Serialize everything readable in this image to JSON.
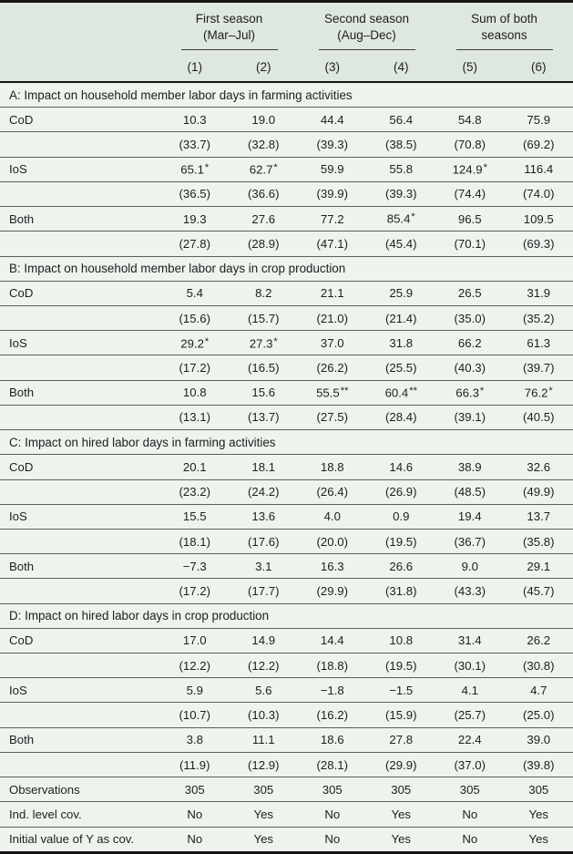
{
  "colors": {
    "body_background": "#eef3ee",
    "header_background": "#dee8de",
    "heavy_rule": "#141414",
    "thin_rule": "#5e5e5e"
  },
  "table": {
    "groups": [
      {
        "line1": "First season",
        "line2": "(Mar–Jul)"
      },
      {
        "line1": "Second season",
        "line2": "(Aug–Dec)"
      },
      {
        "line1": "Sum of both",
        "line2": "seasons"
      }
    ],
    "col_numbers": [
      "(1)",
      "(2)",
      "(3)",
      "(4)",
      "(5)",
      "(6)"
    ],
    "sections": [
      {
        "title": "A: Impact on household member labor days in farming activities",
        "rows": [
          {
            "label": "CoD",
            "values": [
              "10.3",
              "19.0",
              "44.4",
              "56.4",
              "54.8",
              "75.9"
            ]
          },
          {
            "label": "",
            "values": [
              "(33.7)",
              "(32.8)",
              "(39.3)",
              "(38.5)",
              "(70.8)",
              "(69.2)"
            ]
          },
          {
            "label": "IoS",
            "values": [
              "65.1*",
              "62.7*",
              "59.9",
              "55.8",
              "124.9*",
              "116.4"
            ]
          },
          {
            "label": "",
            "values": [
              "(36.5)",
              "(36.6)",
              "(39.9)",
              "(39.3)",
              "(74.4)",
              "(74.0)"
            ]
          },
          {
            "label": "Both",
            "values": [
              "19.3",
              "27.6",
              "77.2",
              "85.4*",
              "96.5",
              "109.5"
            ]
          },
          {
            "label": "",
            "values": [
              "(27.8)",
              "(28.9)",
              "(47.1)",
              "(45.4)",
              "(70.1)",
              "(69.3)"
            ]
          }
        ]
      },
      {
        "title": "B: Impact on household member labor days in crop production",
        "rows": [
          {
            "label": "CoD",
            "values": [
              "5.4",
              "8.2",
              "21.1",
              "25.9",
              "26.5",
              "31.9"
            ]
          },
          {
            "label": "",
            "values": [
              "(15.6)",
              "(15.7)",
              "(21.0)",
              "(21.4)",
              "(35.0)",
              "(35.2)"
            ]
          },
          {
            "label": "IoS",
            "values": [
              "29.2*",
              "27.3*",
              "37.0",
              "31.8",
              "66.2",
              "61.3"
            ]
          },
          {
            "label": "",
            "values": [
              "(17.2)",
              "(16.5)",
              "(26.2)",
              "(25.5)",
              "(40.3)",
              "(39.7)"
            ]
          },
          {
            "label": "Both",
            "values": [
              "10.8",
              "15.6",
              "55.5**",
              "60.4**",
              "66.3*",
              "76.2*"
            ]
          },
          {
            "label": "",
            "values": [
              "(13.1)",
              "(13.7)",
              "(27.5)",
              "(28.4)",
              "(39.1)",
              "(40.5)"
            ]
          }
        ]
      },
      {
        "title": "C: Impact on hired labor days in farming activities",
        "rows": [
          {
            "label": "CoD",
            "values": [
              "20.1",
              "18.1",
              "18.8",
              "14.6",
              "38.9",
              "32.6"
            ]
          },
          {
            "label": "",
            "values": [
              "(23.2)",
              "(24.2)",
              "(26.4)",
              "(26.9)",
              "(48.5)",
              "(49.9)"
            ]
          },
          {
            "label": "IoS",
            "values": [
              "15.5",
              "13.6",
              "4.0",
              "0.9",
              "19.4",
              "13.7"
            ]
          },
          {
            "label": "",
            "values": [
              "(18.1)",
              "(17.6)",
              "(20.0)",
              "(19.5)",
              "(36.7)",
              "(35.8)"
            ]
          },
          {
            "label": "Both",
            "values": [
              "−7.3",
              "3.1",
              "16.3",
              "26.6",
              "9.0",
              "29.1"
            ]
          },
          {
            "label": "",
            "values": [
              "(17.2)",
              "(17.7)",
              "(29.9)",
              "(31.8)",
              "(43.3)",
              "(45.7)"
            ]
          }
        ]
      },
      {
        "title": "D: Impact on hired labor days in crop production",
        "rows": [
          {
            "label": "CoD",
            "values": [
              "17.0",
              "14.9",
              "14.4",
              "10.8",
              "31.4",
              "26.2"
            ]
          },
          {
            "label": "",
            "values": [
              "(12.2)",
              "(12.2)",
              "(18.8)",
              "(19.5)",
              "(30.1)",
              "(30.8)"
            ]
          },
          {
            "label": "IoS",
            "values": [
              "5.9",
              "5.6",
              "−1.8",
              "−1.5",
              "4.1",
              "4.7"
            ]
          },
          {
            "label": "",
            "values": [
              "(10.7)",
              "(10.3)",
              "(16.2)",
              "(15.9)",
              "(25.7)",
              "(25.0)"
            ]
          },
          {
            "label": "Both",
            "values": [
              "3.8",
              "11.1",
              "18.6",
              "27.8",
              "22.4",
              "39.0"
            ]
          },
          {
            "label": "",
            "values": [
              "(11.9)",
              "(12.9)",
              "(28.1)",
              "(29.9)",
              "(37.0)",
              "(39.8)"
            ]
          }
        ]
      }
    ],
    "footer_rows": [
      {
        "label": "Observations",
        "values": [
          "305",
          "305",
          "305",
          "305",
          "305",
          "305"
        ]
      },
      {
        "label": "Ind. level cov.",
        "values": [
          "No",
          "Yes",
          "No",
          "Yes",
          "No",
          "Yes"
        ]
      },
      {
        "label": "Initial value of Y as cov.",
        "values": [
          "No",
          "Yes",
          "No",
          "Yes",
          "No",
          "Yes"
        ]
      }
    ]
  }
}
